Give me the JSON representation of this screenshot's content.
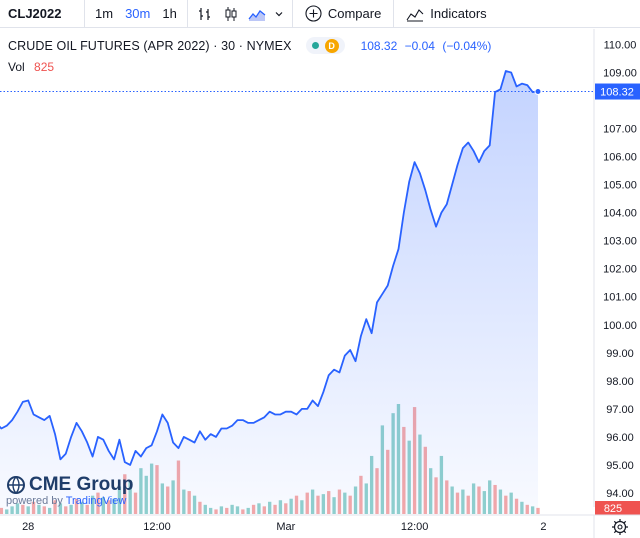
{
  "toolbar": {
    "symbol": "CLJ2022",
    "intervals": [
      {
        "label": "1m",
        "active": false
      },
      {
        "label": "30m",
        "active": true
      },
      {
        "label": "1h",
        "active": false
      }
    ],
    "compare_label": "Compare",
    "indicators_label": "Indicators"
  },
  "legend": {
    "title": "CRUDE OIL FUTURES (APR 2022) · 30 · NYMEX",
    "badge": "D",
    "last": "108.32",
    "change": "−0.04",
    "change_pct": "(−0.04%)",
    "vol_label": "Vol",
    "vol_value": "825"
  },
  "watermark": {
    "brand": "CME Group",
    "powered": "powered by",
    "provider": "TradingView"
  },
  "colors": {
    "line": "#2962ff",
    "area": "#2962ff",
    "vol_up": "#26a69a",
    "vol_down": "#ef5350",
    "last_price": "#2962ff"
  },
  "chart_data": {
    "type": "area",
    "title": "CRUDE OIL FUTURES (APR 2022) · 30 · NYMEX",
    "x_tick_labels": [
      {
        "label": "28",
        "index": 6
      },
      {
        "label": "12:00",
        "index": 30
      },
      {
        "label": "Mar",
        "index": 54
      },
      {
        "label": "12:00",
        "index": 78
      },
      {
        "label": "2",
        "index": 102
      }
    ],
    "y_tick_labels": [
      94.0,
      95.0,
      96.0,
      97.0,
      98.0,
      99.0,
      100.0,
      101.0,
      102.0,
      103.0,
      104.0,
      105.0,
      106.0,
      107.0,
      108.0,
      109.0,
      110.0
    ],
    "ylim": [
      93.5,
      110.55
    ],
    "last_price": 108.32,
    "last_price_label": "108.32",
    "vol_last_label": "825",
    "grid": false,
    "price": [
      96.5,
      96.3,
      96.4,
      96.6,
      96.9,
      97.25,
      97.3,
      96.8,
      96.7,
      96.6,
      96.75,
      96.1,
      95.2,
      95.4,
      96.0,
      96.5,
      96.2,
      95.8,
      95.3,
      96.0,
      95.9,
      95.5,
      95.2,
      95.9,
      95.1,
      95.0,
      95.5,
      95.3,
      95.6,
      95.7,
      96.2,
      96.8,
      96.5,
      95.8,
      95.6,
      96.0,
      95.9,
      95.8,
      96.2,
      95.9,
      96.1,
      96.0,
      96.3,
      96.3,
      96.4,
      96.6,
      96.6,
      96.5,
      96.5,
      96.6,
      96.7,
      96.9,
      96.8,
      96.8,
      96.9,
      96.9,
      96.8,
      97.0,
      97.0,
      97.3,
      97.1,
      97.6,
      98.2,
      98.4,
      98.3,
      98.9,
      99.1,
      98.7,
      99.6,
      100.2,
      99.7,
      100.8,
      101.1,
      101.4,
      102.1,
      102.7,
      104.0,
      105.1,
      105.8,
      105.4,
      104.8,
      104.1,
      103.5,
      104.0,
      104.3,
      105.0,
      105.7,
      106.3,
      106.5,
      106.2,
      105.8,
      106.2,
      106.4,
      108.3,
      108.4,
      109.05,
      109.0,
      108.5,
      108.6,
      108.55,
      108.3,
      108.32
    ],
    "volume": [
      {
        "v": 3,
        "up": true
      },
      {
        "v": 4,
        "up": false
      },
      {
        "v": 3,
        "up": true
      },
      {
        "v": 5,
        "up": true
      },
      {
        "v": 7,
        "up": true
      },
      {
        "v": 6,
        "up": false
      },
      {
        "v": 5,
        "up": true
      },
      {
        "v": 8,
        "up": false
      },
      {
        "v": 6,
        "up": true
      },
      {
        "v": 5,
        "up": false
      },
      {
        "v": 4,
        "up": true
      },
      {
        "v": 9,
        "up": false
      },
      {
        "v": 7,
        "up": true
      },
      {
        "v": 5,
        "up": false
      },
      {
        "v": 6,
        "up": true
      },
      {
        "v": 10,
        "up": false
      },
      {
        "v": 8,
        "up": true
      },
      {
        "v": 6,
        "up": false
      },
      {
        "v": 12,
        "up": true
      },
      {
        "v": 14,
        "up": false
      },
      {
        "v": 11,
        "up": true
      },
      {
        "v": 9,
        "up": false
      },
      {
        "v": 10,
        "up": true
      },
      {
        "v": 18,
        "up": true
      },
      {
        "v": 26,
        "up": false
      },
      {
        "v": 22,
        "up": true
      },
      {
        "v": 14,
        "up": false
      },
      {
        "v": 30,
        "up": true
      },
      {
        "v": 25,
        "up": true
      },
      {
        "v": 33,
        "up": true
      },
      {
        "v": 32,
        "up": false
      },
      {
        "v": 20,
        "up": true
      },
      {
        "v": 18,
        "up": false
      },
      {
        "v": 22,
        "up": true
      },
      {
        "v": 35,
        "up": false
      },
      {
        "v": 16,
        "up": true
      },
      {
        "v": 15,
        "up": false
      },
      {
        "v": 12,
        "up": true
      },
      {
        "v": 8,
        "up": false
      },
      {
        "v": 6,
        "up": true
      },
      {
        "v": 4,
        "up": true
      },
      {
        "v": 3,
        "up": false
      },
      {
        "v": 5,
        "up": true
      },
      {
        "v": 4,
        "up": false
      },
      {
        "v": 6,
        "up": true
      },
      {
        "v": 5,
        "up": true
      },
      {
        "v": 3,
        "up": false
      },
      {
        "v": 4,
        "up": true
      },
      {
        "v": 6,
        "up": false
      },
      {
        "v": 7,
        "up": true
      },
      {
        "v": 5,
        "up": false
      },
      {
        "v": 8,
        "up": true
      },
      {
        "v": 6,
        "up": false
      },
      {
        "v": 9,
        "up": true
      },
      {
        "v": 7,
        "up": false
      },
      {
        "v": 10,
        "up": true
      },
      {
        "v": 12,
        "up": false
      },
      {
        "v": 9,
        "up": true
      },
      {
        "v": 14,
        "up": false
      },
      {
        "v": 16,
        "up": true
      },
      {
        "v": 12,
        "up": false
      },
      {
        "v": 13,
        "up": true
      },
      {
        "v": 15,
        "up": false
      },
      {
        "v": 11,
        "up": true
      },
      {
        "v": 16,
        "up": false
      },
      {
        "v": 14,
        "up": true
      },
      {
        "v": 12,
        "up": false
      },
      {
        "v": 18,
        "up": true
      },
      {
        "v": 25,
        "up": false
      },
      {
        "v": 20,
        "up": true
      },
      {
        "v": 38,
        "up": true
      },
      {
        "v": 30,
        "up": false
      },
      {
        "v": 58,
        "up": true
      },
      {
        "v": 42,
        "up": false
      },
      {
        "v": 66,
        "up": true
      },
      {
        "v": 72,
        "up": true
      },
      {
        "v": 57,
        "up": false
      },
      {
        "v": 48,
        "up": true
      },
      {
        "v": 70,
        "up": false
      },
      {
        "v": 52,
        "up": true
      },
      {
        "v": 44,
        "up": false
      },
      {
        "v": 30,
        "up": true
      },
      {
        "v": 24,
        "up": false
      },
      {
        "v": 38,
        "up": true
      },
      {
        "v": 22,
        "up": false
      },
      {
        "v": 18,
        "up": true
      },
      {
        "v": 14,
        "up": false
      },
      {
        "v": 16,
        "up": true
      },
      {
        "v": 12,
        "up": false
      },
      {
        "v": 20,
        "up": true
      },
      {
        "v": 18,
        "up": false
      },
      {
        "v": 15,
        "up": true
      },
      {
        "v": 22,
        "up": true
      },
      {
        "v": 19,
        "up": false
      },
      {
        "v": 16,
        "up": true
      },
      {
        "v": 12,
        "up": false
      },
      {
        "v": 14,
        "up": true
      },
      {
        "v": 10,
        "up": false
      },
      {
        "v": 8,
        "up": true
      },
      {
        "v": 6,
        "up": false
      },
      {
        "v": 5,
        "up": true
      },
      {
        "v": 4,
        "up": false
      }
    ]
  }
}
